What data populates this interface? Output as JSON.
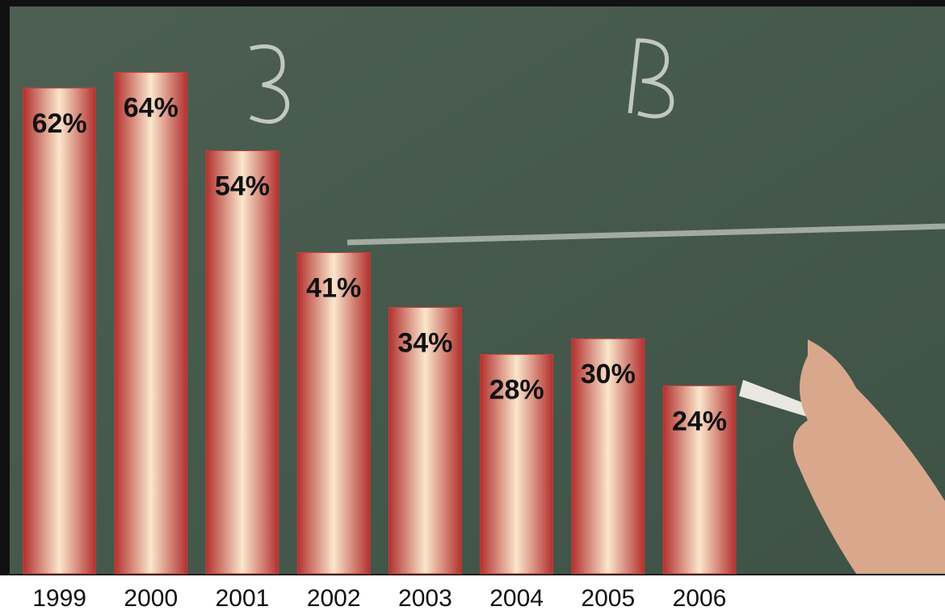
{
  "chart_data": {
    "type": "bar",
    "categories": [
      "1999",
      "2000",
      "2001",
      "2002",
      "2003",
      "2004",
      "2005",
      "2006"
    ],
    "values": [
      62,
      64,
      54,
      41,
      34,
      28,
      30,
      24
    ],
    "value_labels": [
      "62%",
      "64%",
      "54%",
      "41%",
      "34%",
      "28%",
      "30%",
      "24%"
    ],
    "color": "#c0403c",
    "ylim": [
      0,
      72
    ]
  }
}
